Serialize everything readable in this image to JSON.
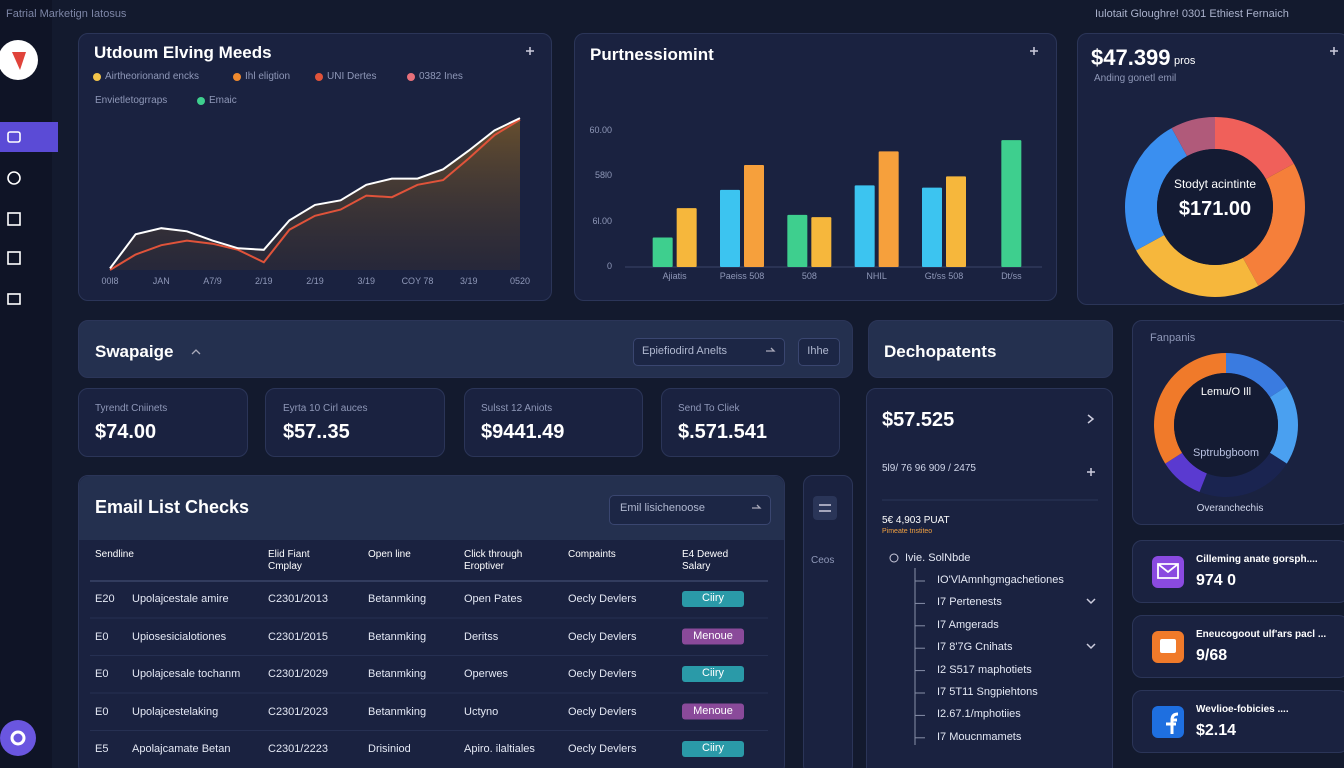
{
  "header": {
    "left": "Fatrial Marketign Iatosus",
    "right": "Iulotait Gloughre! 0301 Ethiest Fernaich"
  },
  "chart_data": [
    {
      "type": "line",
      "title": "Utdoum Elving Meeds",
      "legend": [
        {
          "name": "Airtheorionand encks",
          "color": "#f3c44a"
        },
        {
          "name": "Ihl eligtion",
          "color": "#f08a2e"
        },
        {
          "name": "UNI Dertes",
          "color": "#e0533a"
        },
        {
          "name": "0382 Ines",
          "color": "#e8707a"
        },
        {
          "name": "Envietletogrraps"
        },
        {
          "name": "Emaic",
          "color": "#3ecf8e"
        }
      ],
      "categories": [
        "00l8",
        null,
        "JAN",
        null,
        "A7/9",
        null,
        "2/19",
        null,
        "2/19",
        null,
        "3/19",
        null,
        "COY 78",
        null,
        "3/19",
        null,
        "0520"
      ],
      "series": [
        {
          "color": "#ffffff",
          "values": [
            1,
            23,
            27,
            25,
            19,
            14,
            13,
            32,
            42,
            45,
            55,
            59,
            59,
            65,
            77,
            90,
            98
          ]
        },
        {
          "color": "#e0533a",
          "values": [
            0,
            10,
            16,
            19,
            17,
            13,
            5,
            26,
            35,
            39,
            48,
            47,
            55,
            58,
            72,
            87,
            97
          ]
        }
      ],
      "ylim": [
        0,
        100
      ]
    },
    {
      "type": "bar",
      "title": "Purtnessiomint",
      "categories": [
        "Ajiatis",
        "Paeiss 508",
        "508",
        "NHIL",
        "Gt/ss 508",
        "Dt/ss"
      ],
      "series": [
        {
          "colors": [
            "#3ecf8e",
            "#3cc4f0",
            "#3ecf8e",
            "#3cc4f0",
            "#3cc4f0",
            "#3ecf8e"
          ],
          "values": [
            13,
            34,
            23,
            36,
            35,
            56
          ]
        },
        {
          "colors": [
            "#f6b73c",
            "#f6a03c",
            "#f6b73c",
            "#f6a03c",
            "#f6b73c",
            "#f6b73c"
          ],
          "values": [
            26,
            45,
            22,
            51,
            40,
            null
          ]
        }
      ],
      "ylim": [
        0,
        60
      ],
      "yticks": [
        0,
        {
          "value": 20,
          "label": "6l.00"
        },
        {
          "value": 40,
          "label": "58l0"
        },
        {
          "value": 60,
          "label": "60.00"
        }
      ]
    },
    {
      "type": "donut",
      "title": "$47.399",
      "note": "pros",
      "subtitle": "Anding gonetl emil",
      "center_label": "Stodyt acintinte",
      "center_value": "$171.00",
      "values": [
        17,
        25,
        25,
        25,
        8
      ],
      "colors": [
        "#f0605a",
        "#f57f3a",
        "#f6b73c",
        "#3a8ff0",
        "#b05a7a"
      ]
    },
    {
      "type": "donut",
      "title": "Fanpanis",
      "center_label": "Lemu/O Ill",
      "center_sub": "Sptrubgboom",
      "caption": "Overanchechis",
      "values": [
        16,
        18,
        22,
        10,
        34
      ],
      "colors": [
        "#3a7be0",
        "#4aa0f0",
        "#1a2450",
        "#5a3ad0",
        "#f07a2a"
      ]
    }
  ],
  "toolbar": {
    "title": "Swapaige",
    "search": "Epiefiodird Anelts",
    "button": "Ihhe"
  },
  "stats": [
    {
      "label": "Tyrendt Cniinets",
      "value": "$74.00"
    },
    {
      "label": "Eyrta 10 Cirl auces",
      "value": "$57..35"
    },
    {
      "label": "Sulsst 12 Aniots",
      "value": "$9441.49"
    },
    {
      "label": "Send To Cliek",
      "value": "$.571.541"
    }
  ],
  "table": {
    "title": "Email List Checks",
    "search": "Emil lisichenoose",
    "side_header": "Ceos",
    "headers": [
      "Sendline",
      "Elid Fiant Cmplay",
      "Open line",
      "Click through Eroptiver",
      "Compaints",
      "E4 Dewed Salary"
    ],
    "rows": [
      [
        "E20",
        "Upolajcestale amire",
        "C2301/2013",
        "Betanmking",
        "Open Pates",
        "Oecly Devlers",
        "Ciiry"
      ],
      [
        "E0",
        "Upiosesicialotiones",
        "C2301/2015",
        "Betanmking",
        "Deritss",
        "Oecly Devlers",
        "Menoue"
      ],
      [
        "E0",
        "Upolajcesale tochanm",
        "C2301/2029",
        "Betanmking",
        "Operwes",
        "Oecly Devlers",
        "Ciiry"
      ],
      [
        "E0",
        "Upolajcestelaking",
        "C2301/2023",
        "Betanmking",
        "Uctyno",
        "Oecly Devlers",
        "Menoue"
      ],
      [
        "E5",
        "Apolajcamate Betan",
        "C2301/2223",
        "Drisiniod",
        "Apiro. ilaltiales",
        "Oecly Devlers",
        "Ciiry"
      ]
    ],
    "badge_colors": [
      "#2a9aa8",
      "#8a4a9a",
      "#2a9aa8",
      "#8a4a9a",
      "#2a9aa8"
    ]
  },
  "detail": {
    "title": "Dechopatents",
    "value": "$57.525",
    "line": "5l9/ 76 96 909 / 2475",
    "sub": "5€ 4,903 PUAT",
    "tag": "Pimeate tnstiteo",
    "tree": [
      "Ivie. SolNbde",
      "IO'VlAmnhgmgachetiones",
      "I7 Pertenests",
      "I7 Amgerads",
      "I7 8'7G Cnihats",
      "I2 S517 maphotiets",
      "I7 5T11 Sngpiehtons",
      "I2.67.1/mphotiies",
      "I7 Moucnmamets"
    ]
  },
  "cards": [
    {
      "title": "Cilleming anate gorsph....",
      "value": "974 0"
    },
    {
      "title": "Eneucogoout ulf'ars pacl ...",
      "value": "9/68"
    },
    {
      "title": "Wevlioe-fobicies ....",
      "value": "$2.14"
    }
  ]
}
